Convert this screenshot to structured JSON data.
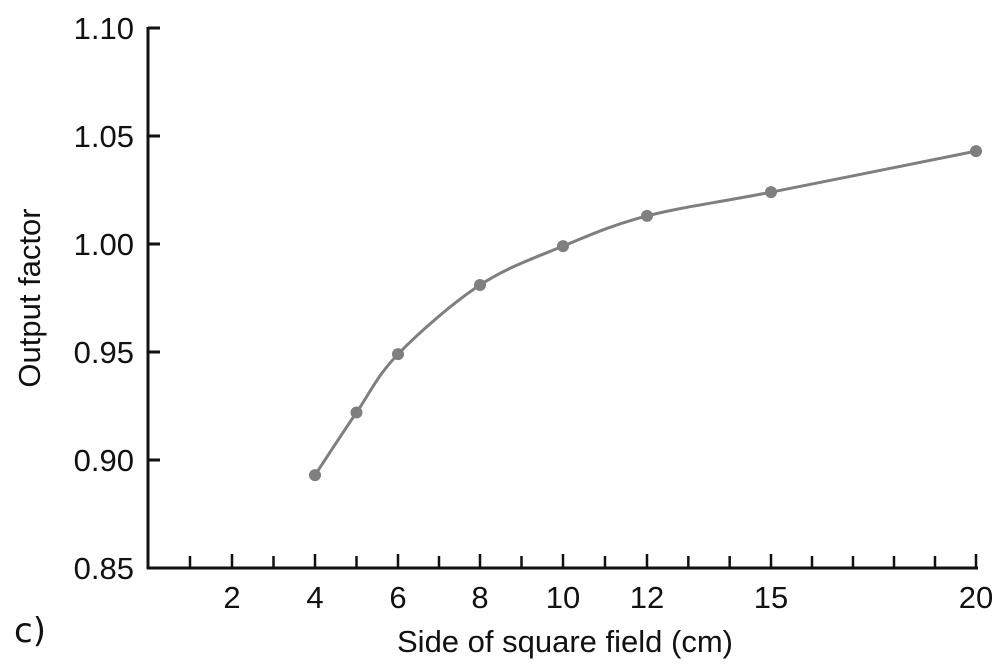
{
  "chart_data": {
    "type": "line",
    "panel_label": "c)",
    "title": "",
    "xlabel": "Side of square field (cm)",
    "ylabel": "Output factor",
    "x": [
      4,
      5,
      6,
      8,
      10,
      12,
      15,
      20
    ],
    "series": [
      {
        "values": [
          0.893,
          0.922,
          0.949,
          0.981,
          0.999,
          1.013,
          1.024,
          1.043
        ]
      }
    ],
    "xticks": [
      2,
      4,
      6,
      8,
      10,
      12,
      15,
      20
    ],
    "xtick_labels": [
      "2",
      "4",
      "6",
      "8",
      "10",
      "12",
      "15",
      "20"
    ],
    "yticks": [
      0.85,
      0.9,
      0.95,
      1.0,
      1.05,
      1.1
    ],
    "ytick_labels": [
      "0.85",
      "0.90",
      "0.95",
      "1.00",
      "1.05",
      "1.10"
    ],
    "ylim": [
      0.85,
      1.1
    ],
    "grid": false,
    "colors": {
      "series": "#7f7f7f",
      "axis": "#111111"
    }
  }
}
